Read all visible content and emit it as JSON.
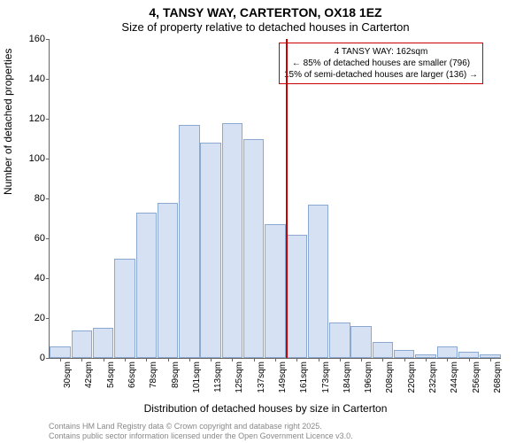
{
  "title": {
    "line1": "4, TANSY WAY, CARTERTON, OX18 1EZ",
    "line2": "Size of property relative to detached houses in Carterton"
  },
  "ylabel": "Number of detached properties",
  "xlabel": "Distribution of detached houses by size in Carterton",
  "chart": {
    "type": "histogram",
    "background_color": "#ffffff",
    "bar_fill": "#d6e2f3",
    "bar_border": "#8aa8d0",
    "axis_color": "#666666",
    "marker_color": "#cc0000",
    "ylim": [
      0,
      160
    ],
    "yticks": [
      0,
      20,
      40,
      60,
      80,
      100,
      120,
      140,
      160
    ],
    "xticks": [
      "30sqm",
      "42sqm",
      "54sqm",
      "66sqm",
      "78sqm",
      "89sqm",
      "101sqm",
      "113sqm",
      "125sqm",
      "137sqm",
      "149sqm",
      "161sqm",
      "173sqm",
      "184sqm",
      "196sqm",
      "208sqm",
      "220sqm",
      "232sqm",
      "244sqm",
      "256sqm",
      "268sqm"
    ],
    "values": [
      6,
      14,
      15,
      50,
      73,
      78,
      117,
      108,
      118,
      110,
      67,
      62,
      77,
      18,
      16,
      8,
      4,
      2,
      6,
      3,
      2
    ],
    "marker_index": 11,
    "bar_count": 21
  },
  "annotation": {
    "line1": "4 TANSY WAY: 162sqm",
    "line2": "← 85% of detached houses are smaller (796)",
    "line3": "15% of semi-detached houses are larger (136) →"
  },
  "footer": {
    "line1": "Contains HM Land Registry data © Crown copyright and database right 2025.",
    "line2": "Contains public sector information licensed under the Open Government Licence v3.0."
  }
}
